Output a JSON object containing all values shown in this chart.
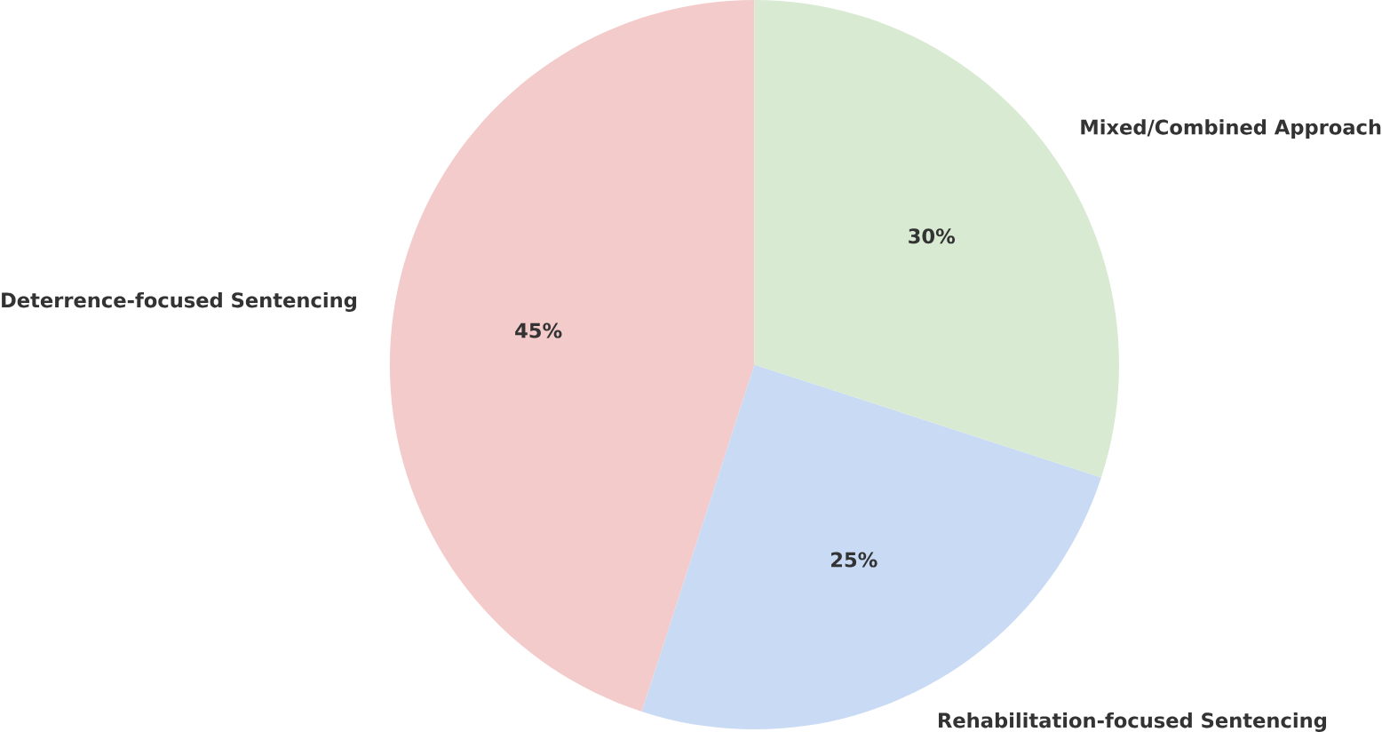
{
  "chart_data": {
    "type": "pie",
    "categories": [
      "Deterrence-focused Sentencing",
      "Rehabilitation-focused Sentencing",
      "Mixed/Combined Approach"
    ],
    "values": [
      45,
      25,
      30
    ],
    "colors": [
      "#f2cbca",
      "#c9daf5",
      "#d9ead3"
    ],
    "value_labels": [
      "45%",
      "25%",
      "30%"
    ]
  }
}
